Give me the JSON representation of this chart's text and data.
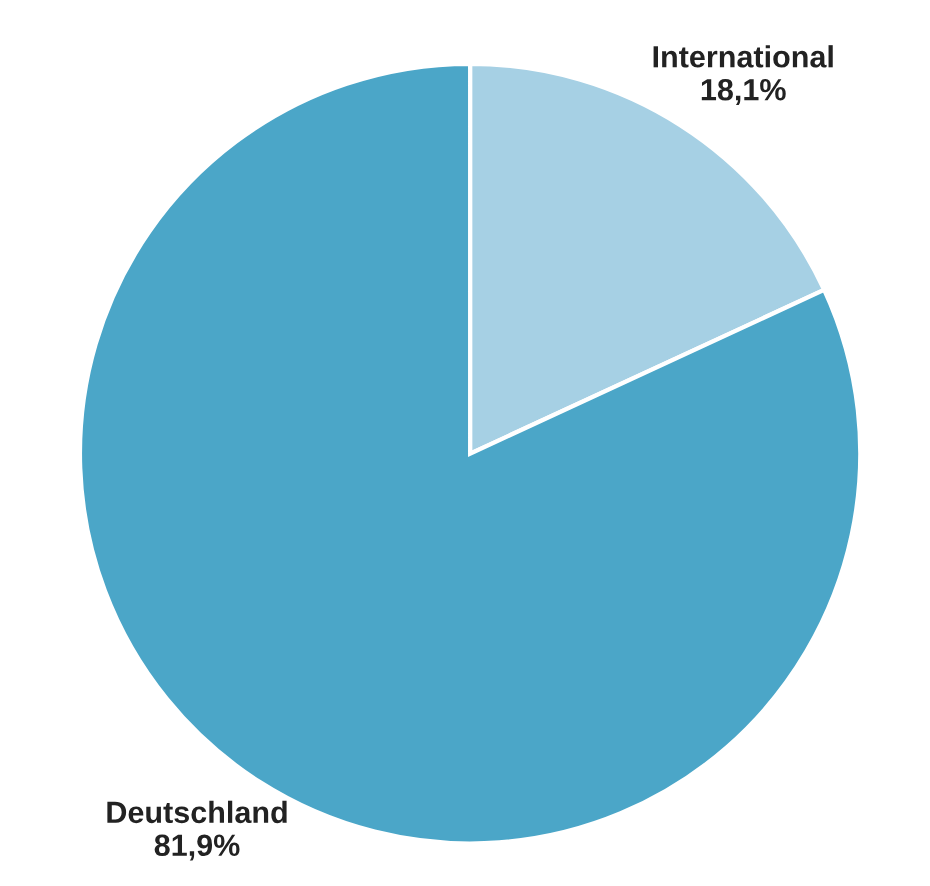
{
  "chart_data": {
    "type": "pie",
    "categories": [
      "International",
      "Deutschland"
    ],
    "values": [
      18.1,
      81.9
    ],
    "value_labels": [
      "18,1%",
      "81,9%"
    ],
    "colors": [
      "#a6d0e4",
      "#4ba6c8"
    ]
  }
}
